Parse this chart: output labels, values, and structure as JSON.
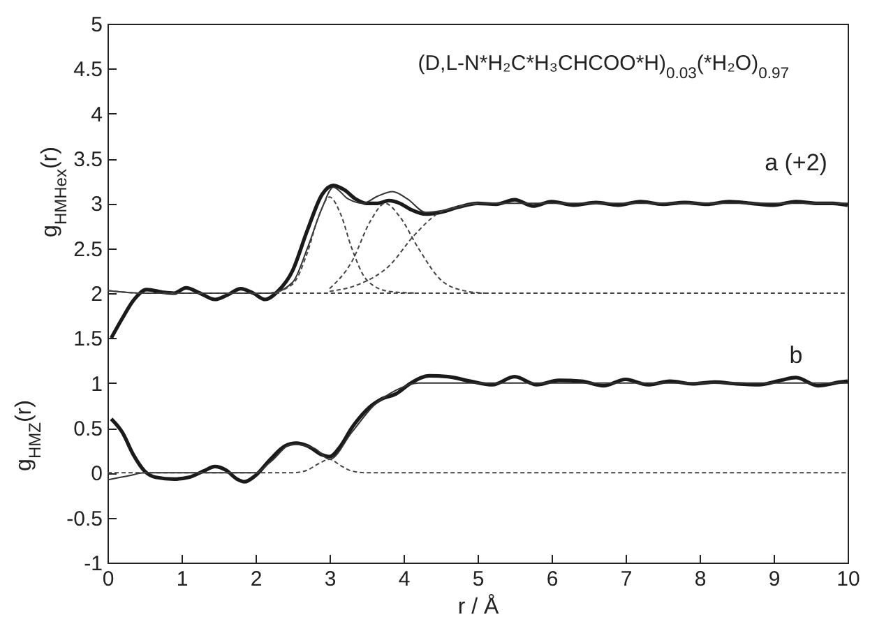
{
  "chart_data": {
    "type": "line",
    "title": "(D,L-N*H₂C*H₃CHCOO*H)$_{0.03}$(*H₂O)$_{0.97}$",
    "xlabel": "r / Å",
    "ylabel": "g$_{HMHex}$(r)",
    "annotations": [
      "g$_{HMZ}$(r)",
      "a (+2)",
      "b"
    ],
    "xlim": [
      0,
      10
    ],
    "ylim": [
      -1,
      5
    ],
    "xticks": [
      0,
      1,
      2,
      3,
      4,
      5,
      6,
      7,
      8,
      9,
      10
    ],
    "yticks": [
      -1,
      -0.5,
      0,
      0.5,
      1,
      1.5,
      2,
      2.5,
      3,
      3.5,
      4,
      4.5,
      5
    ],
    "grid": false,
    "series": [
      {
        "color": "#1a1a1a",
        "line_style": "solid",
        "x": [
          0.05,
          0.2,
          0.35,
          0.53,
          0.75,
          0.9,
          1.06,
          1.25,
          1.45,
          1.62,
          1.8,
          1.97,
          2.13,
          2.3,
          2.5,
          2.7,
          2.9,
          3.05,
          3.2,
          3.35,
          3.5,
          3.65,
          3.8,
          3.95,
          4.1,
          4.3,
          4.5,
          4.75,
          5.0,
          5.25,
          5.5,
          5.75,
          6.0,
          6.3,
          6.6,
          6.9,
          7.2,
          7.5,
          7.8,
          8.1,
          8.4,
          8.7,
          9.0,
          9.3,
          9.6,
          9.8,
          10
        ],
        "values": [
          1.5,
          1.72,
          1.92,
          2.04,
          2.01,
          2.0,
          2.06,
          2.0,
          1.93,
          1.98,
          2.05,
          2.0,
          1.93,
          2.02,
          2.25,
          2.7,
          3.1,
          3.2,
          3.15,
          3.05,
          3.0,
          3.0,
          3.03,
          3.0,
          2.93,
          2.88,
          2.9,
          2.96,
          3.0,
          2.99,
          3.04,
          2.97,
          3.02,
          2.98,
          3.01,
          2.98,
          3.02,
          2.99,
          3.01,
          2.99,
          3.02,
          3.0,
          2.98,
          3.02,
          3.0,
          3.0,
          2.98
        ]
      },
      {
        "color": "#333333",
        "line_style": "solid",
        "x": [
          0,
          0.5,
          2.2,
          2.5,
          2.7,
          2.9,
          3.05,
          3.25,
          3.45,
          3.65,
          3.85,
          4.05,
          4.3,
          4.6,
          5.0,
          10
        ],
        "values": [
          2.03,
          2.0,
          2.0,
          2.12,
          2.5,
          2.95,
          3.18,
          3.05,
          3.0,
          3.08,
          3.13,
          3.05,
          2.9,
          2.93,
          3.0,
          3.0
        ]
      },
      {
        "color": "#444444",
        "line_style": "dashed",
        "x": [
          0,
          0.5,
          10
        ],
        "values": [
          2.03,
          2.0,
          2.0
        ]
      },
      {
        "color": "#444444",
        "line_style": "dashed",
        "x": [
          2.2,
          2.5,
          2.7,
          2.85,
          3.0,
          3.15,
          3.3,
          3.5,
          3.8,
          4.2
        ],
        "values": [
          2.0,
          2.1,
          2.45,
          2.85,
          3.07,
          2.88,
          2.5,
          2.15,
          2.02,
          2.0
        ]
      },
      {
        "color": "#444444",
        "line_style": "dashed",
        "x": [
          3.0,
          3.3,
          3.55,
          3.75,
          3.95,
          4.2,
          4.5,
          4.8,
          5.1
        ],
        "values": [
          2.05,
          2.35,
          2.8,
          3.0,
          2.85,
          2.5,
          2.15,
          2.03,
          2.0
        ]
      },
      {
        "color": "#444444",
        "line_style": "dashed",
        "x": [
          3.0,
          3.4,
          3.8,
          4.15,
          4.45,
          4.75,
          5.0
        ],
        "values": [
          2.02,
          2.1,
          2.3,
          2.65,
          2.88,
          2.97,
          3.0
        ]
      },
      {
        "color": "#1a1a1a",
        "line_style": "solid",
        "x": [
          0.05,
          0.2,
          0.35,
          0.5,
          0.65,
          0.9,
          1.1,
          1.3,
          1.45,
          1.6,
          1.75,
          1.85,
          2.0,
          2.2,
          2.4,
          2.55,
          2.7,
          2.9,
          3.0,
          3.15,
          3.3,
          3.5,
          3.7,
          3.9,
          4.1,
          4.35,
          4.6,
          4.9,
          5.2,
          5.5,
          5.8,
          6.1,
          6.4,
          6.7,
          7.0,
          7.3,
          7.6,
          7.9,
          8.2,
          8.5,
          8.8,
          9.1,
          9.3,
          9.6,
          9.9,
          10
        ],
        "values": [
          0.6,
          0.45,
          0.2,
          0.02,
          -0.05,
          -0.07,
          -0.05,
          0.02,
          0.07,
          0.03,
          -0.07,
          -0.1,
          -0.03,
          0.15,
          0.3,
          0.33,
          0.3,
          0.2,
          0.18,
          0.3,
          0.5,
          0.7,
          0.82,
          0.88,
          1.0,
          1.08,
          1.07,
          1.02,
          0.98,
          1.07,
          0.98,
          1.03,
          1.02,
          0.97,
          1.04,
          0.98,
          1.02,
          0.99,
          1.01,
          0.99,
          0.98,
          1.03,
          1.06,
          0.97,
          1.01,
          1.02
        ]
      },
      {
        "color": "#333333",
        "line_style": "solid",
        "x": [
          0,
          0.3,
          0.5,
          2.0,
          2.2,
          2.5,
          2.8,
          3.0,
          3.3,
          3.6,
          3.9,
          4.2,
          10
        ],
        "values": [
          -0.08,
          -0.03,
          0.0,
          0.0,
          0.12,
          0.32,
          0.27,
          0.15,
          0.45,
          0.75,
          0.92,
          1.0,
          1.0
        ]
      },
      {
        "color": "#444444",
        "line_style": "dashed",
        "x": [
          0,
          2.5,
          2.7,
          2.85,
          3.0,
          3.15,
          3.3,
          3.5,
          10
        ],
        "values": [
          0.0,
          0.0,
          0.03,
          0.1,
          0.15,
          0.08,
          0.02,
          0.0,
          0.0
        ]
      }
    ]
  }
}
